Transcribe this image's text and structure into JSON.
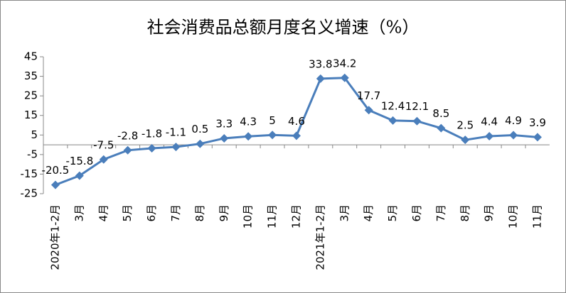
{
  "chart_data": {
    "type": "line",
    "title": "社会消费品总额月度名义增速（%）",
    "categories": [
      "2020年1-2月",
      "3月",
      "4月",
      "5月",
      "6月",
      "7月",
      "8月",
      "9月",
      "10月",
      "11月",
      "12月",
      "2021年1-2月",
      "3月",
      "4月",
      "5月",
      "6月",
      "7月",
      "8月",
      "9月",
      "10月",
      "11月"
    ],
    "values": [
      -20.5,
      -15.8,
      -7.5,
      -2.8,
      -1.8,
      -1.1,
      0.5,
      3.3,
      4.3,
      5,
      4.6,
      33.8,
      34.2,
      17.7,
      12.4,
      12.1,
      8.5,
      2.5,
      4.4,
      4.9,
      3.9
    ],
    "color": "#4a7ebb",
    "ylim": [
      -25,
      45
    ],
    "yticks": [
      -25,
      -15,
      -5,
      5,
      15,
      25,
      35,
      45
    ],
    "grid": false
  }
}
